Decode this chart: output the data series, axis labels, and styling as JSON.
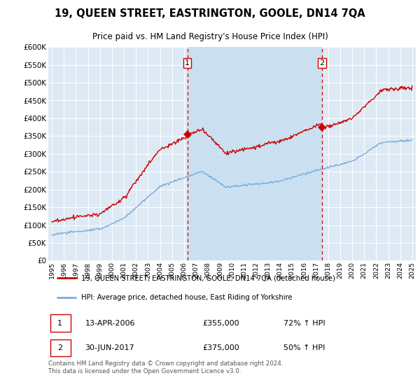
{
  "title": "19, QUEEN STREET, EASTRINGTON, GOOLE, DN14 7QA",
  "subtitle": "Price paid vs. HM Land Registry's House Price Index (HPI)",
  "legend_line1": "19, QUEEN STREET, EASTRINGTON, GOOLE, DN14 7QA (detached house)",
  "legend_line2": "HPI: Average price, detached house, East Riding of Yorkshire",
  "annotation1_date": "13-APR-2006",
  "annotation1_price": "£355,000",
  "annotation1_pct": "72% ↑ HPI",
  "annotation2_date": "30-JUN-2017",
  "annotation2_price": "£375,000",
  "annotation2_pct": "50% ↑ HPI",
  "footer": "Contains HM Land Registry data © Crown copyright and database right 2024.\nThis data is licensed under the Open Government Licence v3.0.",
  "hpi_color": "#7aaddb",
  "price_color": "#cc0000",
  "sale1_x": 2006.28,
  "sale1_y": 355000,
  "sale2_x": 2017.5,
  "sale2_y": 375000,
  "ylim": [
    0,
    600000
  ],
  "xlim": [
    1994.7,
    2025.3
  ],
  "background_color": "#ffffff",
  "plot_bg_color": "#ddeaf5",
  "shade_color": "#c8dff0"
}
